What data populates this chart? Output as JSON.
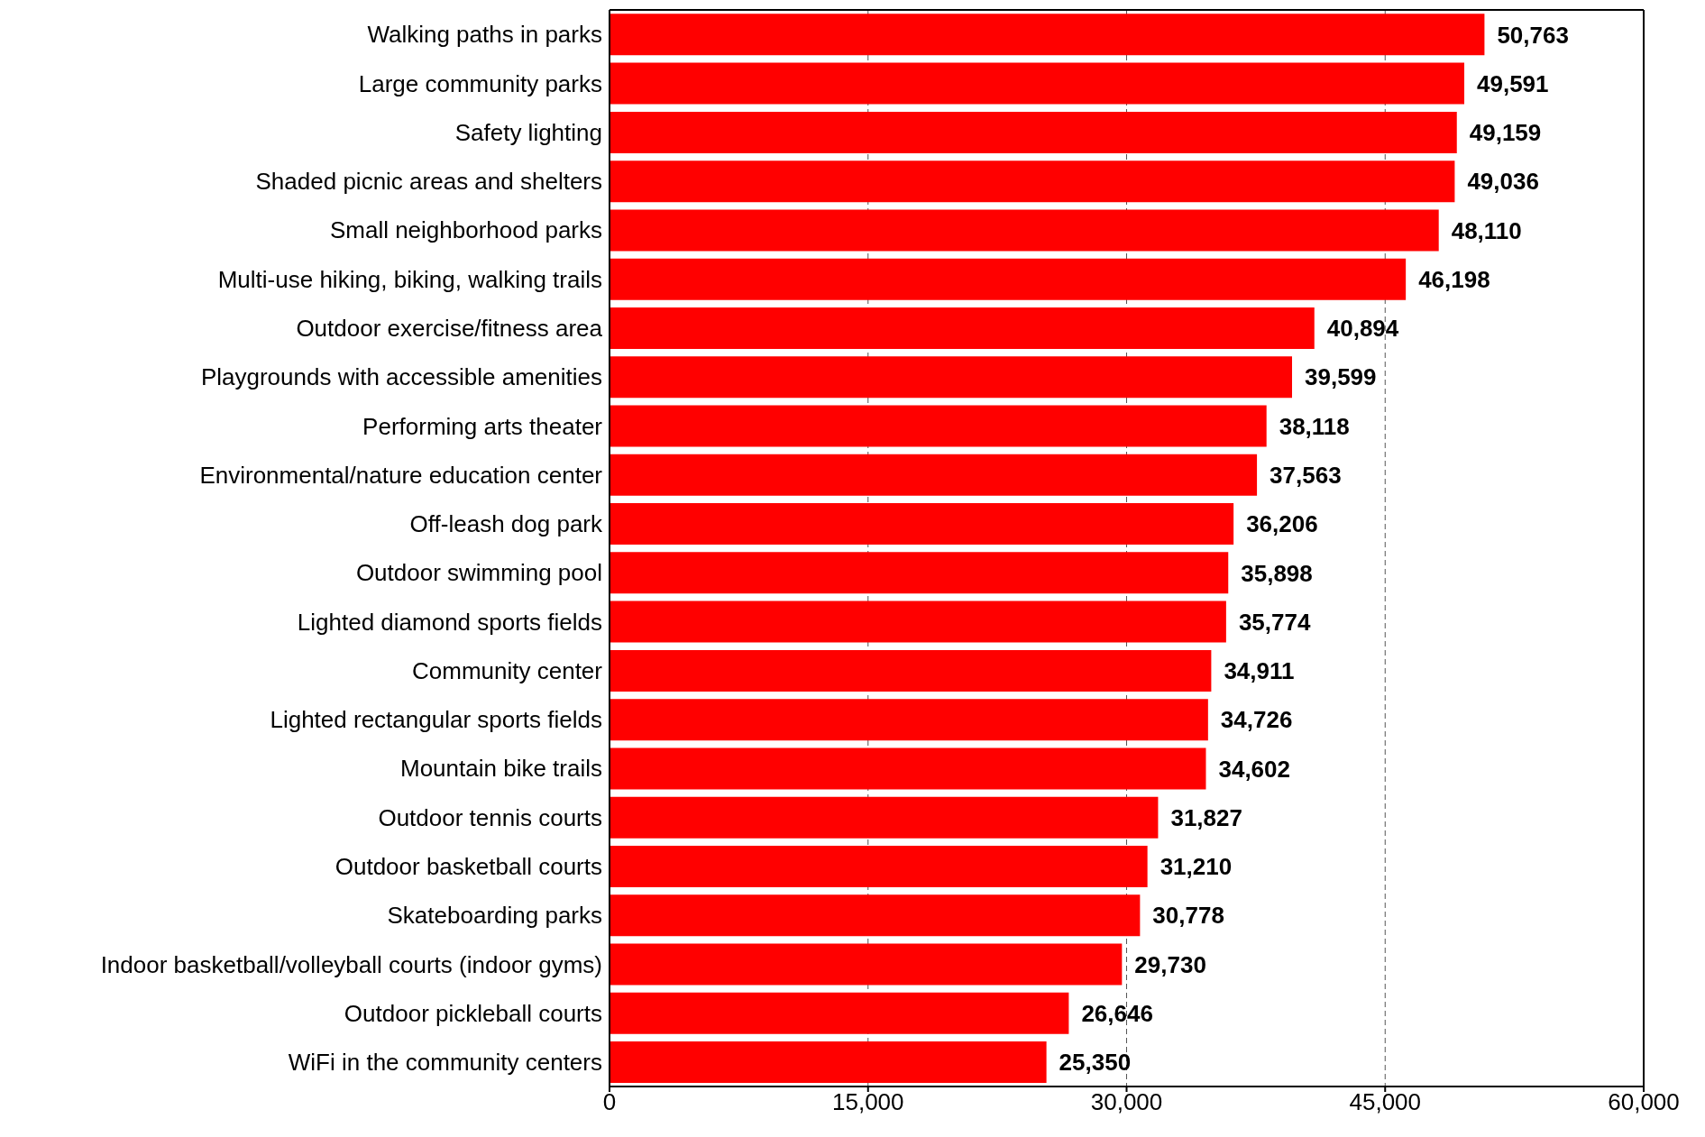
{
  "chart_data": {
    "type": "bar",
    "orientation": "horizontal",
    "categories": [
      "Walking paths in parks",
      "Large community parks",
      "Safety lighting",
      "Shaded picnic areas and shelters",
      "Small neighborhood parks",
      "Multi-use hiking, biking, walking trails",
      "Outdoor exercise/fitness area",
      "Playgrounds with accessible amenities",
      "Performing arts theater",
      "Environmental/nature education center",
      "Off-leash dog park",
      "Outdoor swimming pool",
      "Lighted diamond sports fields",
      "Community center",
      "Lighted rectangular sports fields",
      "Mountain bike trails",
      "Outdoor tennis courts",
      "Outdoor basketball courts",
      "Skateboarding parks",
      "Indoor basketball/volleyball courts (indoor gyms)",
      "Outdoor pickleball courts",
      "WiFi in the community centers"
    ],
    "values": [
      50763,
      49591,
      49159,
      49036,
      48110,
      46198,
      40894,
      39599,
      38118,
      37563,
      36206,
      35898,
      35774,
      34911,
      34726,
      34602,
      31827,
      31210,
      30778,
      29730,
      26646,
      25350
    ],
    "value_labels": [
      "50,763",
      "49,591",
      "49,159",
      "49,036",
      "48,110",
      "46,198",
      "40,894",
      "39,599",
      "38,118",
      "37,563",
      "36,206",
      "35,898",
      "35,774",
      "34,911",
      "34,726",
      "34,602",
      "31,827",
      "31,210",
      "30,778",
      "29,730",
      "26,646",
      "25,350"
    ],
    "color": "#ff0000",
    "xlim": [
      0,
      60000
    ],
    "xticks": [
      0,
      {
        "value": 15000,
        "label": "15,000"
      },
      {
        "value": 30000,
        "label": "30,000"
      },
      {
        "value": 45000,
        "label": "45,000"
      },
      {
        "value": 60000,
        "label": "60,000"
      }
    ],
    "grid": "x",
    "legend": false
  }
}
